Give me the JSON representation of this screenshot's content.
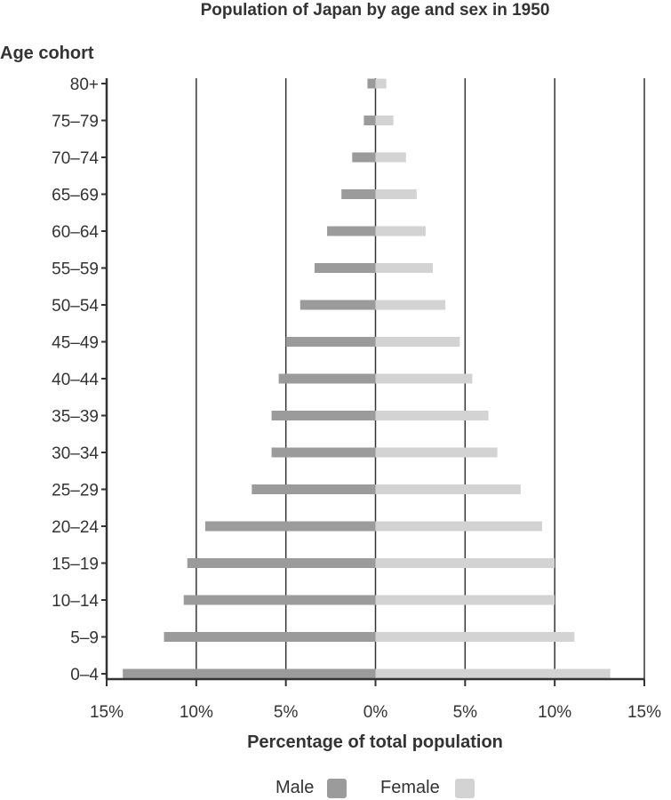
{
  "chart_data": {
    "type": "bar",
    "orientation": "horizontal",
    "title": "Population of Japan by age and sex in 1950",
    "ylabel": "Age cohort",
    "xlabel": "Percentage of total population",
    "categories": [
      "0–4",
      "5–9",
      "10–14",
      "15–19",
      "20–24",
      "25–29",
      "30–34",
      "35–39",
      "40–44",
      "45–49",
      "50–54",
      "55–59",
      "60–64",
      "65–69",
      "70–74",
      "75–79",
      "80+"
    ],
    "series": [
      {
        "name": "Male",
        "color": "#9b9b9b",
        "values": [
          14.1,
          11.8,
          10.7,
          10.5,
          9.5,
          6.9,
          5.8,
          5.8,
          5.4,
          5.0,
          4.2,
          3.4,
          2.7,
          1.9,
          1.3,
          0.65,
          0.45
        ]
      },
      {
        "name": "Female",
        "color": "#d3d3d3",
        "values": [
          13.1,
          11.1,
          10.0,
          10.0,
          9.3,
          8.1,
          6.8,
          6.3,
          5.4,
          4.7,
          3.9,
          3.2,
          2.8,
          2.3,
          1.7,
          1.0,
          0.6
        ]
      }
    ],
    "xlim": [
      -15,
      15
    ],
    "xticks": [
      -15,
      -10,
      -5,
      0,
      5,
      10,
      15
    ],
    "xtick_labels": [
      "15%",
      "10%",
      "5%",
      "0%",
      "5%",
      "10%",
      "15%"
    ],
    "grid": "vertical",
    "legend": "bottom-center"
  }
}
